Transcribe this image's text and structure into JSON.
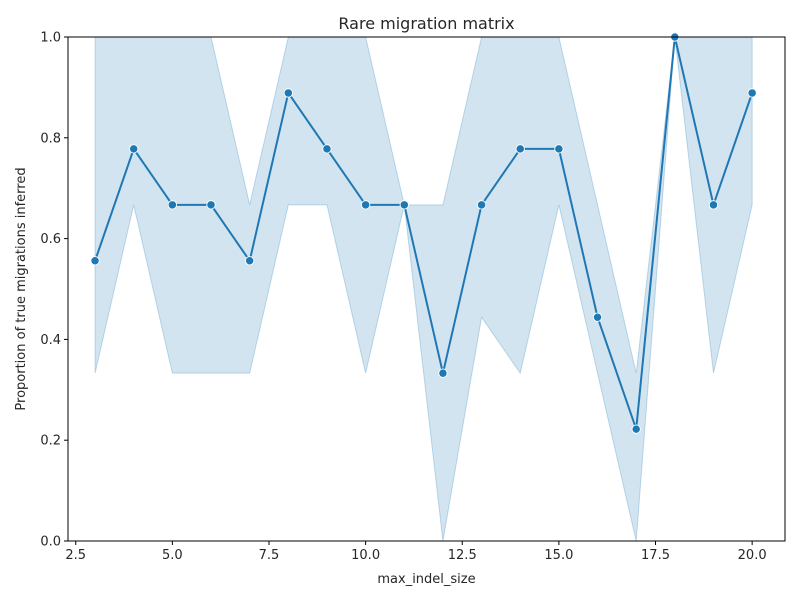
{
  "chart_data": {
    "type": "line",
    "title": "Rare migration matrix",
    "xlabel": "max_indel_size",
    "ylabel": "Proportion of true migrations inferred",
    "xlim": [
      2.3,
      20.85
    ],
    "ylim": [
      0,
      1.0
    ],
    "x_ticks": [
      2.5,
      5.0,
      7.5,
      10.0,
      12.5,
      15.0,
      17.5,
      20.0
    ],
    "x_tick_labels": [
      "2.5",
      "5.0",
      "7.5",
      "10.0",
      "12.5",
      "15.0",
      "17.5",
      "20.0"
    ],
    "y_ticks": [
      0.0,
      0.2,
      0.4,
      0.6,
      0.8,
      1.0
    ],
    "y_tick_labels": [
      "0.0",
      "0.2",
      "0.4",
      "0.6",
      "0.8",
      "1.0"
    ],
    "grid": false,
    "line_color": "#1f77b4",
    "band_color": "#1f77b4",
    "x": [
      3,
      4,
      5,
      6,
      7,
      8,
      9,
      10,
      11,
      12,
      13,
      14,
      15,
      16,
      17,
      18,
      19,
      20
    ],
    "y": [
      0.556,
      0.778,
      0.667,
      0.667,
      0.556,
      0.889,
      0.778,
      0.667,
      0.667,
      0.333,
      0.667,
      0.778,
      0.778,
      0.444,
      0.222,
      1.0,
      0.667,
      0.889
    ],
    "lower": [
      0.333,
      0.667,
      0.333,
      0.333,
      0.333,
      0.667,
      0.667,
      0.333,
      0.667,
      0.0,
      0.444,
      0.333,
      0.667,
      0.333,
      0.0,
      1.0,
      0.333,
      0.667
    ],
    "upper": [
      1.0,
      1.0,
      1.0,
      1.0,
      0.667,
      1.0,
      1.0,
      1.0,
      0.667,
      0.667,
      1.0,
      1.0,
      1.0,
      0.667,
      0.333,
      1.0,
      1.0,
      1.0
    ]
  }
}
